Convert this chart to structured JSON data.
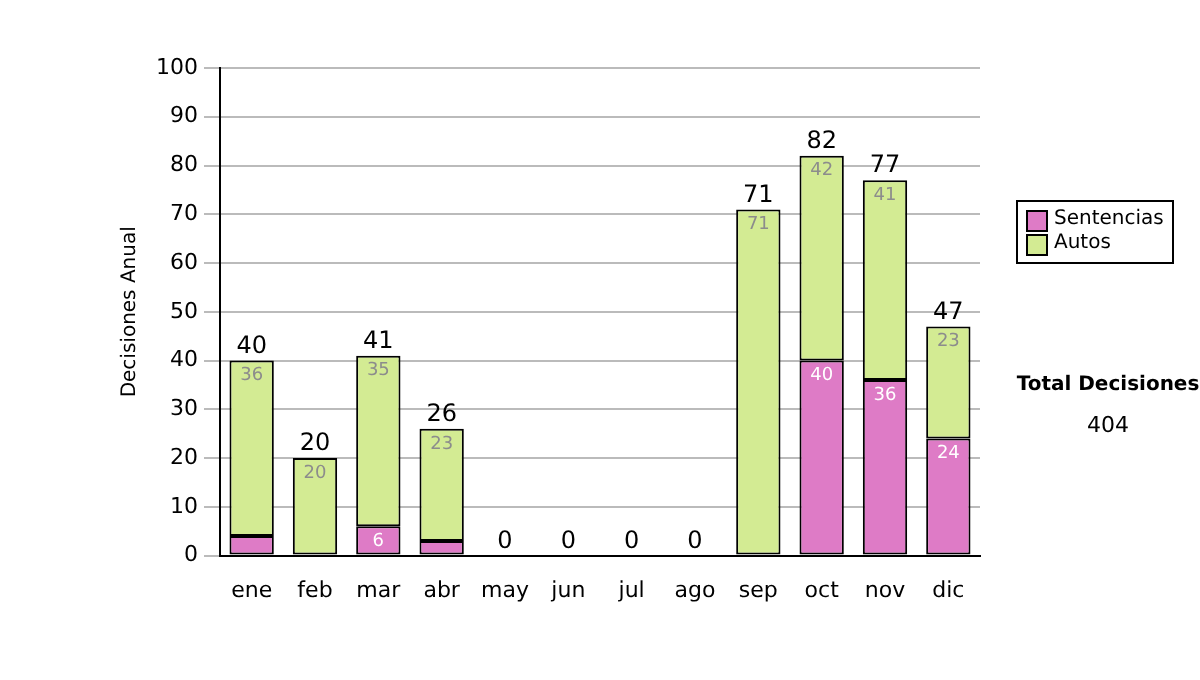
{
  "chart_data": {
    "type": "bar",
    "stacked": true,
    "ylabel": "Decisiones Anual",
    "categories": [
      "ene",
      "feb",
      "mar",
      "abr",
      "may",
      "jun",
      "jul",
      "ago",
      "sep",
      "oct",
      "nov",
      "dic"
    ],
    "series": [
      {
        "name": "Sentencias",
        "color": "#de7bc6",
        "values": [
          4,
          0,
          6,
          3,
          0,
          0,
          0,
          0,
          0,
          40,
          36,
          24
        ],
        "value_labels": [
          null,
          null,
          "6",
          null,
          null,
          null,
          null,
          null,
          null,
          "40",
          "36",
          "24"
        ]
      },
      {
        "name": "Autos",
        "color": "#d3eb93",
        "values": [
          36,
          20,
          35,
          23,
          0,
          0,
          0,
          0,
          71,
          42,
          41,
          23
        ],
        "value_labels": [
          "36",
          "20",
          "35",
          "23",
          null,
          null,
          null,
          null,
          "71",
          "42",
          "41",
          "23"
        ]
      }
    ],
    "totals": [
      "40",
      "20",
      "41",
      "26",
      "0",
      "0",
      "0",
      "0",
      "71",
      "82",
      "77",
      "47"
    ],
    "ylim": [
      0,
      100
    ],
    "yticks": [
      0,
      10,
      20,
      30,
      40,
      50,
      60,
      70,
      80,
      90,
      100
    ],
    "grid": "y",
    "legend": "right",
    "annotations": [
      "Total Decisiones",
      "404"
    ]
  }
}
